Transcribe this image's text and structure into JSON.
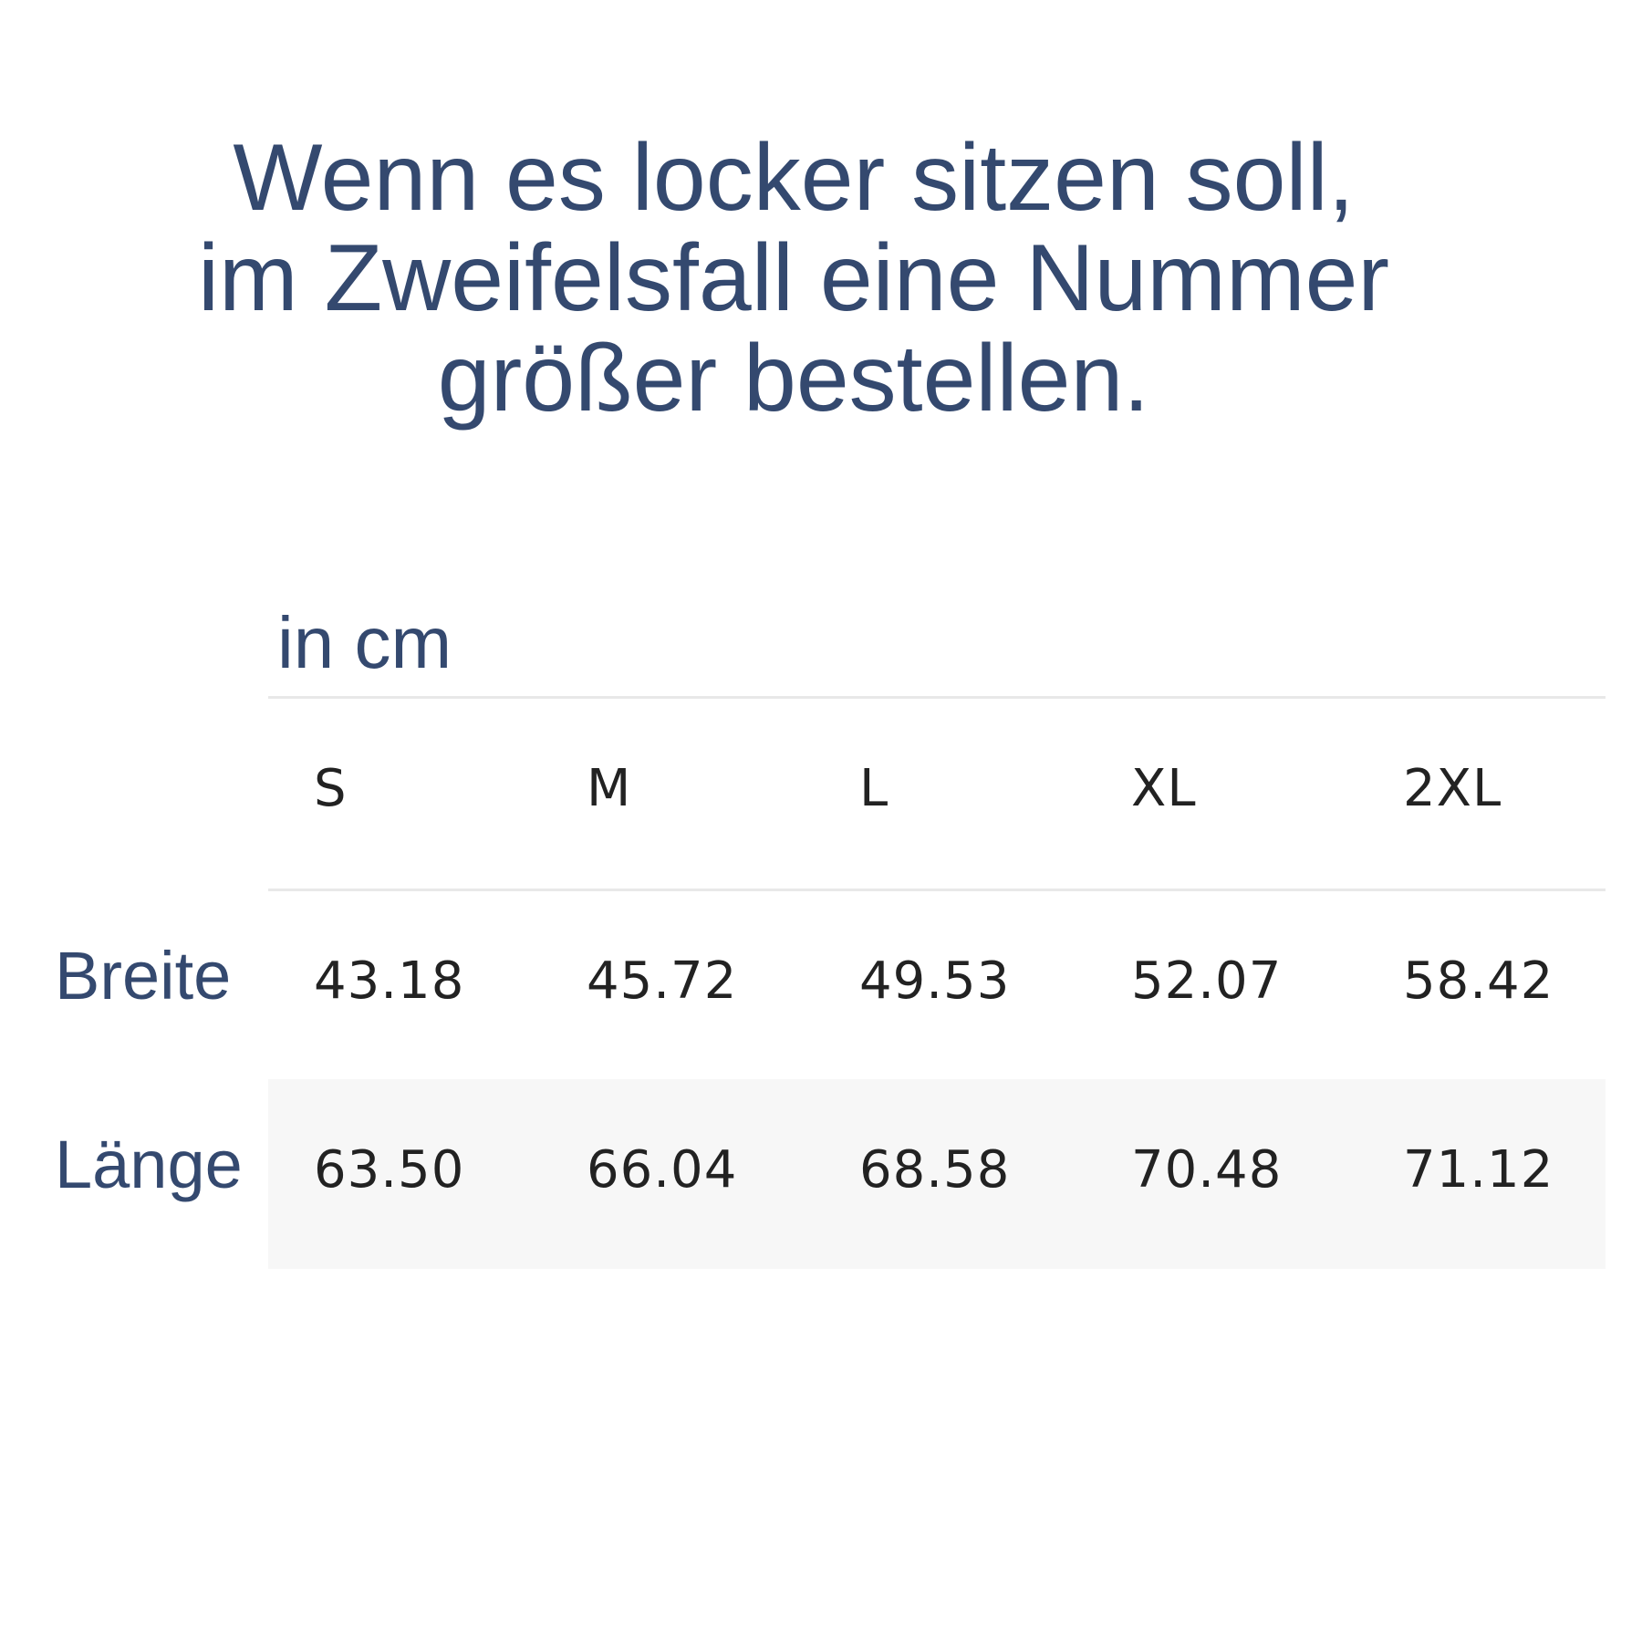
{
  "title": {
    "lines": [
      "Wenn es locker sitzen soll,",
      "im Zweifelsfall eine Nummer",
      "größer bestellen."
    ],
    "color": "#34496f"
  },
  "unit_label": "in cm",
  "table": {
    "sizes": [
      "S",
      "M",
      "L",
      "XL",
      "2XL"
    ],
    "rows": [
      {
        "label": "Breite",
        "values": [
          "43.18",
          "45.72",
          "49.53",
          "52.07",
          "58.42"
        ]
      },
      {
        "label": "Länge",
        "values": [
          "63.50",
          "66.04",
          "68.58",
          "70.48",
          "71.12"
        ]
      }
    ]
  }
}
